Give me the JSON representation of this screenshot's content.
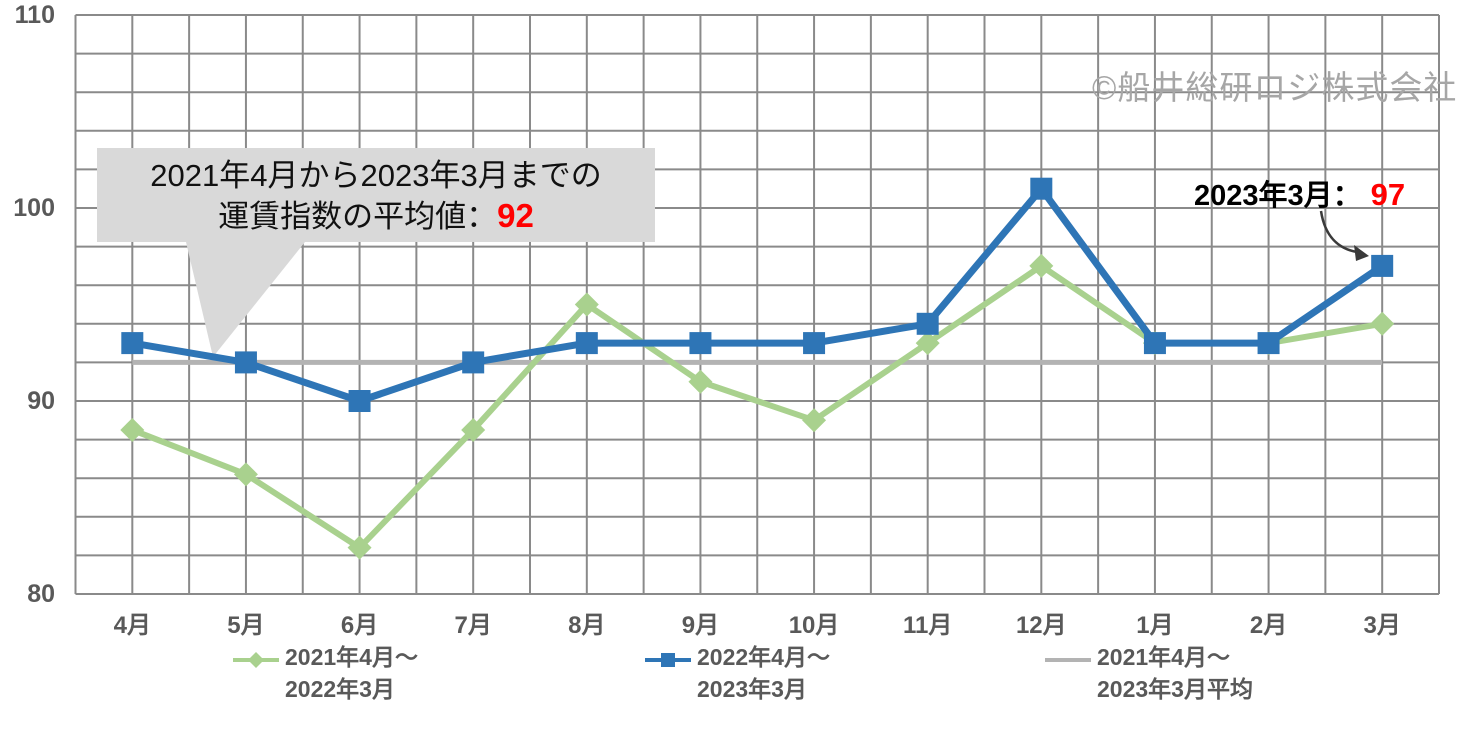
{
  "page": {
    "background": "#ffffff"
  },
  "copyright": "©船井総研ロジ株式会社",
  "callout": {
    "line1": "2021年4月から2023年3月までの",
    "line2_prefix": "運賃指数の平均値：",
    "line2_value": "92",
    "bg_color": "#d9d9d9",
    "value_color": "#ff0000"
  },
  "latest_label": {
    "prefix": "2023年3月：",
    "value": "97",
    "value_color": "#ff0000"
  },
  "chart_data": {
    "type": "line",
    "title": "",
    "xlabel": "",
    "ylabel": "",
    "categories": [
      "4月",
      "5月",
      "6月",
      "7月",
      "8月",
      "9月",
      "10月",
      "11月",
      "12月",
      "1月",
      "2月",
      "3月"
    ],
    "series": [
      {
        "name": "2021年4月～2022年3月",
        "legend_lines": [
          "2021年4月～",
          "2022年3月"
        ],
        "color": "#a9d18e",
        "marker": "diamond",
        "values": [
          88.5,
          86.2,
          82.4,
          88.5,
          95,
          91,
          89,
          93,
          97,
          93,
          93,
          94
        ]
      },
      {
        "name": "2022年4月～2023年3月",
        "legend_lines": [
          "2022年4月～",
          "2023年3月"
        ],
        "color": "#2e75b6",
        "marker": "square",
        "values": [
          93,
          92,
          90,
          92,
          93,
          93,
          93,
          94,
          101,
          93,
          93,
          97
        ]
      },
      {
        "name": "2021年4月～2023年3月平均",
        "legend_lines": [
          "2021年4月～",
          "2023年3月平均"
        ],
        "color": "#b3b3b3",
        "marker": "none",
        "avg_value": 92
      }
    ],
    "ylim": [
      80,
      110
    ],
    "yticks": [
      110,
      100,
      90,
      80
    ],
    "grid": true,
    "gridline_color": "#8a8a8a",
    "legend_position": "bottom"
  }
}
